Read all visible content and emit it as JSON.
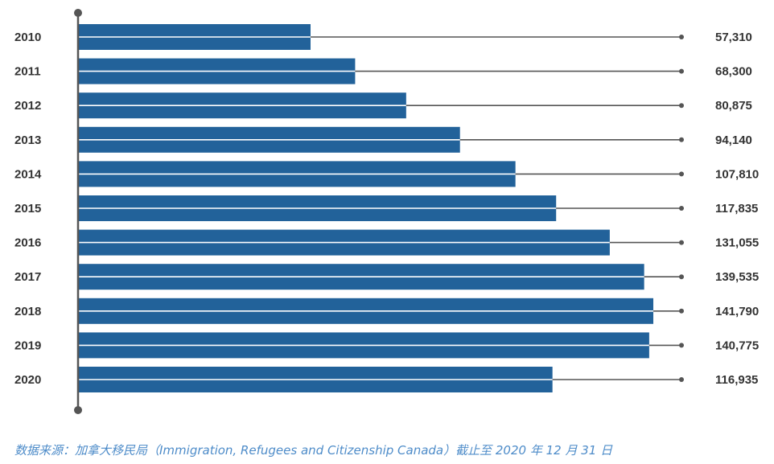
{
  "chart_data": {
    "type": "bar",
    "orientation": "horizontal",
    "categories": [
      "2010",
      "2011",
      "2012",
      "2013",
      "2014",
      "2015",
      "2016",
      "2017",
      "2018",
      "2019",
      "2020"
    ],
    "values": [
      57310,
      68300,
      80875,
      94140,
      107810,
      117835,
      131055,
      139535,
      141790,
      140775,
      116935
    ],
    "value_labels": [
      "57,310",
      "68,300",
      "80,875",
      "94,140",
      "107,810",
      "117,835",
      "131,055",
      "139,535",
      "141,790",
      "140,775",
      "116,935"
    ],
    "xlim": [
      0,
      151000
    ],
    "grid": false,
    "legend": "none",
    "colors": {
      "bar": "#22629a",
      "bar_stripe": "#ffffff",
      "leader": "#555555",
      "axis": "#555555",
      "text": "#333333",
      "note": "#4e8cc9"
    }
  },
  "source_note": "数据来源：加拿大移民局（Immigration, Refugees and Citizenship Canada）截止至 2020 年 12 月 31 日"
}
